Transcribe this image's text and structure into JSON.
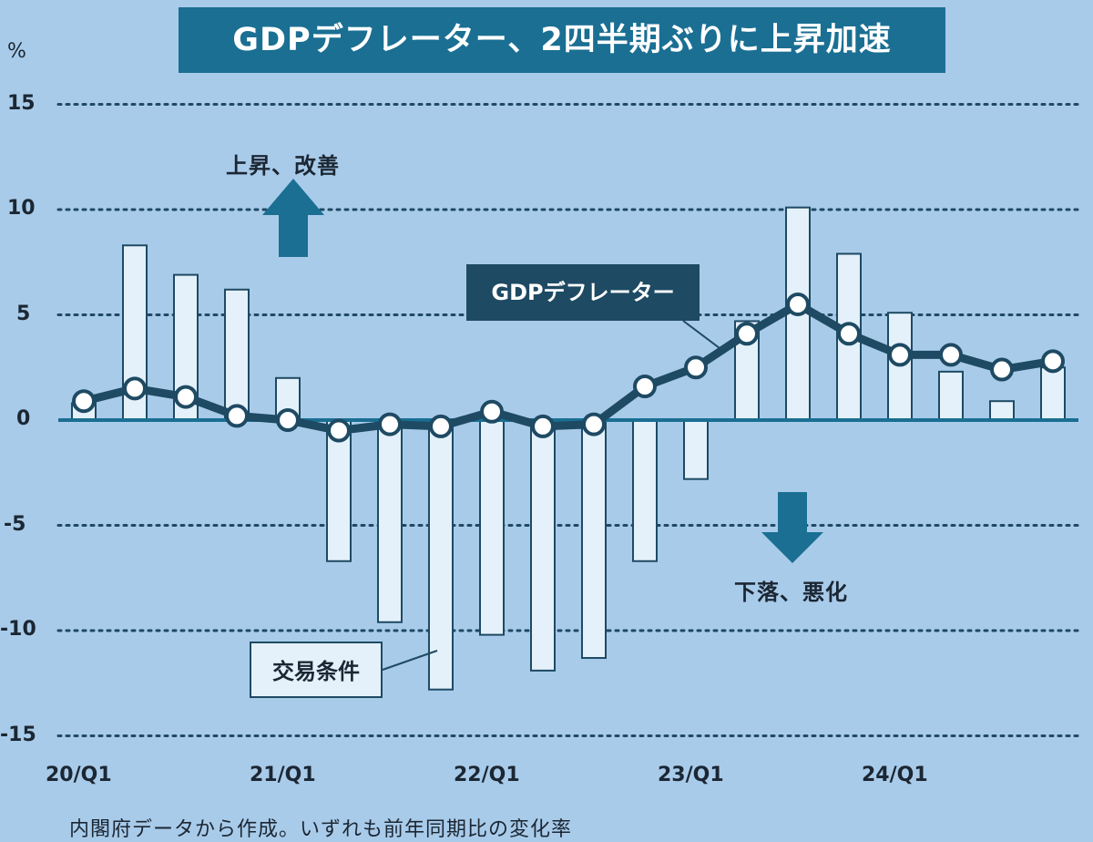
{
  "chart_data": {
    "type": "bar",
    "title": "GDPデフレーター、2四半期ぶりに上昇加速",
    "unit": "%",
    "yticks": [
      "15",
      "10",
      "5",
      "0",
      "-5",
      "-10",
      "-15"
    ],
    "ytick_values": [
      15,
      10,
      5,
      0,
      -5,
      -10,
      -15
    ],
    "ylim": [
      -15,
      15
    ],
    "xtick_labels": [
      "20/Q1",
      "21/Q1",
      "22/Q1",
      "23/Q1",
      "24/Q1"
    ],
    "xtick_indices": [
      0,
      4,
      8,
      12,
      16
    ],
    "categories": [
      "20/Q1",
      "20/Q2",
      "20/Q3",
      "20/Q4",
      "21/Q1",
      "21/Q2",
      "21/Q3",
      "21/Q4",
      "22/Q1",
      "22/Q2",
      "22/Q3",
      "22/Q4",
      "23/Q1",
      "23/Q2",
      "23/Q3",
      "23/Q4",
      "24/Q1",
      "24/Q2",
      "24/Q3",
      "24/Q4"
    ],
    "series": [
      {
        "name": "交易条件",
        "kind": "bar",
        "values": [
          0.8,
          8.3,
          6.9,
          6.2,
          2.0,
          -6.7,
          -9.6,
          -12.8,
          -10.2,
          -11.9,
          -11.3,
          -6.7,
          -2.8,
          4.7,
          10.1,
          7.9,
          5.1,
          2.3,
          0.9,
          2.5
        ]
      },
      {
        "name": "GDPデフレーター",
        "kind": "line",
        "values": [
          0.9,
          1.5,
          1.1,
          0.2,
          0.0,
          -0.5,
          -0.2,
          -0.3,
          0.4,
          -0.3,
          -0.2,
          1.6,
          2.5,
          4.1,
          5.5,
          4.1,
          3.1,
          3.1,
          2.4,
          2.8
        ]
      }
    ],
    "grid": true,
    "annotations": {
      "up": "上昇、改善",
      "down": "下落、悪化",
      "source": "内閣府データから作成。いずれも前年同期比の変化率"
    }
  },
  "colors": {
    "background": "#a9cbea",
    "title_bg": "#1a6f93",
    "bar_fill": "#e4f1fb",
    "bar_stroke": "#1e4a63",
    "line": "#1e4a63",
    "zero_axis": "#1a6f93",
    "arrow": "#1a6f93",
    "grid": "#1e4a63"
  }
}
